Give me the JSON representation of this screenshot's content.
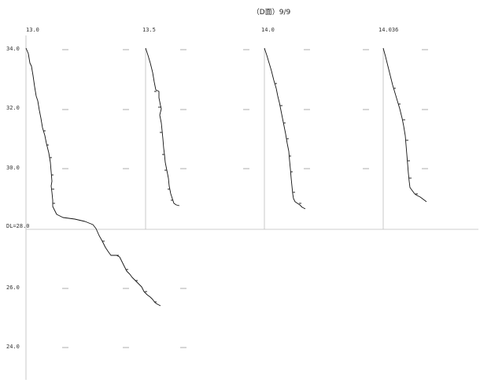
{
  "title": "（D面）9/9",
  "columns": [
    {
      "label": "13.0"
    },
    {
      "label": "13.5"
    },
    {
      "label": "14.0"
    },
    {
      "label": "14.036"
    }
  ],
  "y_labels": [
    "34.0",
    "32.0",
    "30.0",
    "26.0",
    "24.0"
  ],
  "datum_label": "DL=28.0"
}
